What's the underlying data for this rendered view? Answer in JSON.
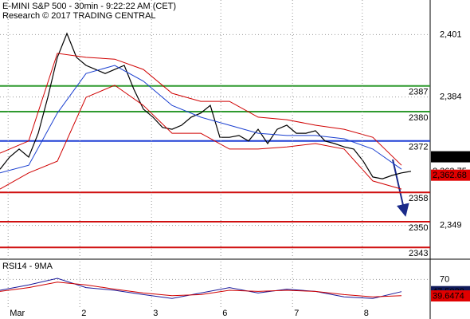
{
  "chart_data": [
    {
      "type": "line",
      "title": "E-MINI S&P 500 - 30min - 9:22:22 AM (CET)",
      "subtitle": "Research © 2017 TRADING CENTRAL",
      "xlim": [
        0,
        90
      ],
      "ylim": [
        2340,
        2410
      ],
      "yticks": [
        {
          "value": 2401,
          "label": "2,401"
        },
        {
          "value": 2384,
          "label": "2,384"
        },
        {
          "value": 2349,
          "label": "2,349"
        }
      ],
      "grid": true,
      "series": [
        {
          "color": "#000000",
          "width": 1.2,
          "x": [
            0,
            2,
            4,
            6,
            8,
            10,
            12,
            14,
            16,
            18,
            20,
            22,
            24,
            26,
            28,
            30,
            32,
            34,
            36,
            38,
            40,
            42,
            44,
            46,
            48,
            50,
            52,
            54,
            56,
            58,
            60,
            62,
            64,
            66,
            68,
            70,
            72,
            74,
            76,
            78,
            80,
            82,
            84,
            86
          ],
          "values": [
            2364.3,
            2367.6,
            2369.8,
            2367.6,
            2374.1,
            2383.9,
            2394.8,
            2401.3,
            2394.8,
            2392.6,
            2391.5,
            2390.4,
            2391.5,
            2392.6,
            2386.1,
            2380.7,
            2378.5,
            2375.7,
            2375.2,
            2376.3,
            2378.5,
            2379.6,
            2381.7,
            2373.0,
            2373.0,
            2373.5,
            2372.0,
            2375.2,
            2371.3,
            2375.2,
            2376.3,
            2374.1,
            2374.1,
            2374.8,
            2372.0,
            2371.3,
            2370.4,
            2369.8,
            2366.5,
            2362.2,
            2361.7,
            2362.6,
            2363.3,
            2363.75
          ]
        },
        {
          "color": "#d00000",
          "width": 1,
          "x": [
            0,
            6,
            12,
            18,
            24,
            30,
            36,
            42,
            48,
            54,
            60,
            66,
            72,
            78,
            84
          ],
          "values": [
            2368.7,
            2372.0,
            2395.9,
            2394.8,
            2394.3,
            2391.5,
            2385.0,
            2382.8,
            2382.8,
            2378.5,
            2377.8,
            2376.3,
            2375.2,
            2373.0,
            2365.4
          ]
        },
        {
          "color": "#d00000",
          "width": 1,
          "x": [
            0,
            6,
            12,
            18,
            24,
            30,
            36,
            42,
            48,
            54,
            60,
            66,
            72,
            78,
            84
          ],
          "values": [
            2358.9,
            2363.3,
            2366.5,
            2383.9,
            2387.2,
            2381.7,
            2374.1,
            2374.1,
            2369.8,
            2369.8,
            2370.4,
            2371.3,
            2369.8,
            2361.1,
            2358.9
          ]
        },
        {
          "color": "#1a3fd0",
          "width": 1,
          "x": [
            0,
            6,
            12,
            18,
            24,
            30,
            36,
            42,
            48,
            54,
            60,
            66,
            72,
            78,
            84
          ],
          "values": [
            2363.3,
            2365.4,
            2379.6,
            2390.4,
            2392.6,
            2388.3,
            2381.7,
            2378.5,
            2376.3,
            2374.1,
            2373.5,
            2373.5,
            2372.6,
            2369.8,
            2364.3
          ]
        }
      ],
      "hlines": [
        {
          "value": 2387,
          "color": "#2f9a2f"
        },
        {
          "value": 2380,
          "color": "#2f9a2f"
        },
        {
          "value": 2372,
          "color": "#1f3fd6"
        },
        {
          "value": 2358,
          "color": "#d01010"
        },
        {
          "value": 2350,
          "color": "#d01010"
        },
        {
          "value": 2343,
          "color": "#d01010"
        }
      ],
      "price_tags": [
        {
          "value": 2367.7,
          "label": "2,367.7",
          "color": "#000000",
          "text_color": "#ffffff"
        },
        {
          "value": 2363.75,
          "label": "2,363.75",
          "color": "#ffffff",
          "text_color": "#000000"
        },
        {
          "value": 2362.68,
          "label": "2,362.68",
          "color": "#e00000",
          "text_color": "#000000"
        }
      ]
    },
    {
      "type": "line",
      "title": "RSI14 - 9MA",
      "xlim": [
        0,
        90
      ],
      "xticks": [
        {
          "value": 1.7,
          "label": "Mar"
        },
        {
          "value": 16.7,
          "label": "2"
        },
        {
          "value": 31.7,
          "label": "3"
        },
        {
          "value": 46.2,
          "label": "6"
        },
        {
          "value": 61.2,
          "label": "7"
        },
        {
          "value": 75.8,
          "label": "8"
        }
      ],
      "ylim": [
        0,
        100
      ],
      "yticks": [
        70
      ],
      "grid": true,
      "series": [
        {
          "color": "#1a1a9a",
          "width": 1,
          "x": [
            0,
            6,
            12,
            18,
            24,
            30,
            36,
            42,
            48,
            54,
            60,
            66,
            72,
            78,
            84
          ],
          "values": [
            50,
            60,
            72,
            55,
            50,
            42,
            35,
            45,
            55,
            45,
            52,
            48,
            38,
            35,
            47.5
          ]
        },
        {
          "color": "#d00000",
          "width": 1,
          "x": [
            0,
            6,
            12,
            18,
            24,
            30,
            36,
            42,
            48,
            54,
            60,
            66,
            72,
            78,
            84
          ],
          "values": [
            48,
            55,
            65,
            60,
            52,
            45,
            40,
            42,
            50,
            48,
            50,
            48,
            42,
            38,
            40
          ]
        }
      ],
      "price_tags": [
        {
          "value": 47.5028,
          "color": "#101a5a",
          "text_color": "#ffffff"
        },
        {
          "value": 39.6474,
          "color": "#e00000",
          "text_color": "#000000"
        }
      ]
    }
  ]
}
